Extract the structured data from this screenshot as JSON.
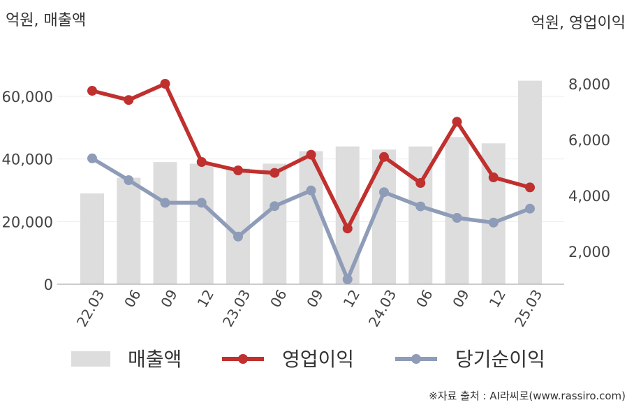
{
  "chart_data": {
    "type": "bar+line",
    "unit_left": "억원, 매출액",
    "unit_right": "억원, 영업이익",
    "categories": [
      "22.03",
      "06",
      "09",
      "12",
      "23.03",
      "06",
      "09",
      "12",
      "24.03",
      "06",
      "09",
      "12",
      "25.03"
    ],
    "left_axis": {
      "ticks": [
        "0",
        "20,000",
        "40,000",
        "60,000"
      ],
      "tick_values": [
        0,
        20000,
        40000,
        60000
      ],
      "range": [
        0,
        75000
      ]
    },
    "right_axis": {
      "ticks": [
        "2,000",
        "4,000",
        "6,000",
        "8,000"
      ],
      "tick_values": [
        2000,
        4000,
        6000,
        8000
      ],
      "range": [
        1000,
        8000
      ]
    },
    "series": [
      {
        "name": "매출액",
        "kind": "bar",
        "axis": "left",
        "color": "#dddddd",
        "values": [
          29000,
          34000,
          39000,
          38500,
          37000,
          38500,
          42500,
          44000,
          43000,
          44000,
          47000,
          45000,
          65000
        ]
      },
      {
        "name": "영업이익",
        "kind": "line",
        "axis": "right",
        "color": "#c0302e",
        "values": [
          7750,
          7420,
          8000,
          5200,
          4900,
          4810,
          5460,
          2820,
          5380,
          4450,
          6640,
          4650,
          4290
        ]
      },
      {
        "name": "당기순이익",
        "kind": "line",
        "axis": "right",
        "color": "#8e9cb8",
        "values": [
          5330,
          4550,
          3740,
          3740,
          2530,
          3620,
          4180,
          1000,
          4120,
          3610,
          3200,
          3030,
          3530
        ]
      }
    ],
    "legend": {
      "position": "bottom"
    },
    "grid": true
  },
  "source": "※자료 출처 : AI라씨로(www.rassiro.com)"
}
